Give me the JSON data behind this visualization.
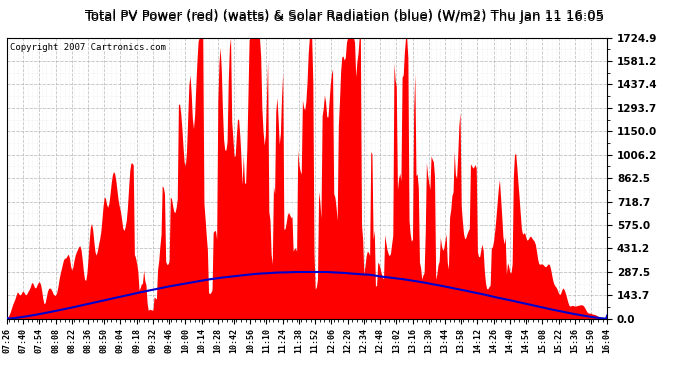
{
  "title": "Total PV Power (red) (watts) & Solar Radiation (blue) (W/m2) Thu Jan 11 16:05",
  "copyright": "Copyright 2007 Cartronics.com",
  "yticks": [
    0.0,
    143.7,
    287.5,
    431.2,
    575.0,
    718.7,
    862.5,
    1006.2,
    1150.0,
    1293.7,
    1437.4,
    1581.2,
    1724.9
  ],
  "ymax": 1724.9,
  "background_color": "#ffffff",
  "plot_bg": "#ffffff",
  "grid_color": "#aaaaaa",
  "pv_color": "#ff0000",
  "solar_color": "#0000cc",
  "title_bg": "#dddddd",
  "tick_interval_min": 14
}
